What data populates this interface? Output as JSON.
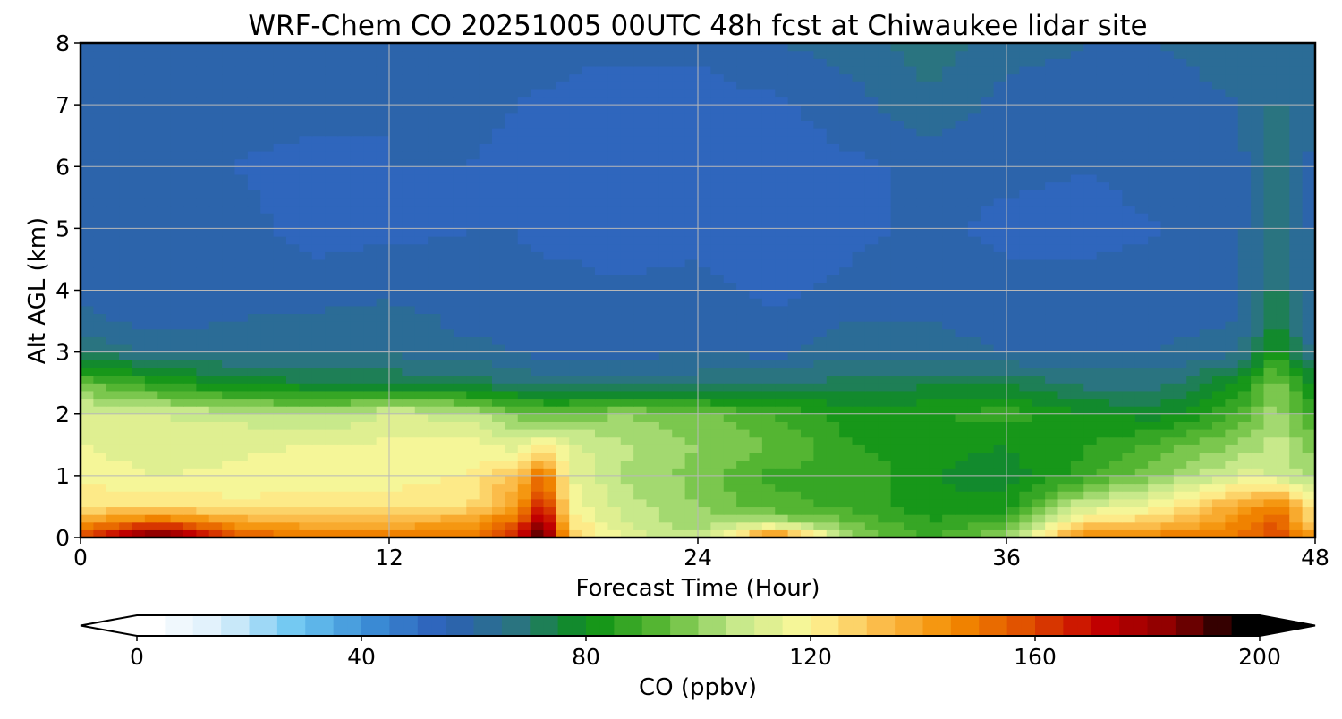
{
  "chart_data": {
    "type": "heatmap",
    "title": "WRF-Chem CO  20251005 00UTC 48h fcst at Chiwaukee lidar site",
    "xlabel": "Forecast Time (Hour)",
    "ylabel": "Alt AGL (km)",
    "xlim": [
      0,
      48
    ],
    "ylim": [
      0,
      8
    ],
    "xticks": [
      0,
      12,
      24,
      36,
      48
    ],
    "yticks": [
      0,
      1,
      2,
      3,
      4,
      5,
      6,
      7,
      8
    ],
    "grid": true,
    "x": [
      0,
      3,
      6,
      9,
      12,
      15,
      17,
      18,
      19,
      21,
      24,
      27,
      30,
      33,
      36,
      39,
      42,
      45,
      46.5,
      48
    ],
    "y": [
      0,
      0.25,
      0.5,
      1,
      1.5,
      2,
      2.5,
      3,
      3.5,
      4,
      5,
      6,
      7,
      8
    ],
    "z": [
      [
        160,
        195,
        160,
        150,
        150,
        150,
        170,
        200,
        130,
        115,
        105,
        150,
        100,
        90,
        100,
        150,
        150,
        150,
        160,
        140
      ],
      [
        140,
        155,
        140,
        135,
        135,
        140,
        155,
        185,
        125,
        110,
        102,
        105,
        95,
        85,
        92,
        125,
        130,
        145,
        158,
        125
      ],
      [
        125,
        125,
        122,
        122,
        122,
        125,
        140,
        170,
        120,
        108,
        100,
        92,
        88,
        82,
        82,
        110,
        118,
        138,
        150,
        118
      ],
      [
        118,
        115,
        116,
        118,
        118,
        120,
        132,
        155,
        115,
        105,
        98,
        88,
        90,
        80,
        77,
        88,
        100,
        112,
        110,
        102
      ],
      [
        115,
        112,
        114,
        115,
        116,
        118,
        112,
        120,
        112,
        106,
        100,
        95,
        85,
        82,
        80,
        84,
        92,
        100,
        108,
        97
      ],
      [
        112,
        110,
        108,
        104,
        110,
        108,
        97,
        95,
        96,
        100,
        96,
        90,
        82,
        84,
        88,
        80,
        78,
        90,
        103,
        88
      ],
      [
        95,
        86,
        78,
        76,
        74,
        72,
        70,
        68,
        66,
        68,
        68,
        70,
        72,
        74,
        74,
        68,
        68,
        80,
        100,
        76
      ],
      [
        70,
        64,
        64,
        64,
        64,
        62,
        60,
        58,
        58,
        58,
        60,
        58,
        64,
        62,
        60,
        60,
        60,
        64,
        82,
        64
      ],
      [
        62,
        58,
        60,
        62,
        64,
        58,
        58,
        56,
        56,
        56,
        58,
        56,
        60,
        60,
        58,
        56,
        58,
        60,
        76,
        58
      ],
      [
        58,
        56,
        58,
        56,
        58,
        56,
        56,
        56,
        56,
        56,
        56,
        54,
        56,
        58,
        56,
        56,
        56,
        58,
        72,
        58
      ],
      [
        56,
        56,
        56,
        54,
        54,
        55,
        55,
        54,
        54,
        52,
        54,
        53,
        54,
        56,
        54,
        54,
        55,
        58,
        70,
        58
      ],
      [
        56,
        55,
        55,
        54,
        55,
        55,
        54,
        53,
        53,
        52,
        52,
        52,
        54,
        56,
        56,
        55,
        56,
        58,
        68,
        58
      ],
      [
        58,
        57,
        56,
        56,
        55,
        56,
        55,
        54,
        54,
        53,
        53,
        54,
        58,
        64,
        58,
        58,
        58,
        60,
        66,
        60
      ],
      [
        60,
        60,
        58,
        58,
        58,
        58,
        58,
        58,
        56,
        56,
        56,
        60,
        62,
        68,
        62,
        60,
        60,
        62,
        64,
        62
      ]
    ],
    "colorbar": {
      "label": "CO  (ppbv)",
      "min": 0,
      "max": 200,
      "ticks": [
        0,
        40,
        80,
        120,
        160,
        200
      ],
      "extend": "both",
      "colors": [
        "#ffffff",
        "#d9eefb",
        "#6cc6f1",
        "#3b8ed6",
        "#2d5fb8",
        "#2a7480",
        "#0b9114",
        "#5ab834",
        "#c4e88a",
        "#fef89a",
        "#fbbc4a",
        "#f38c00",
        "#e04e00",
        "#c40000",
        "#8a0000",
        "#000000"
      ]
    }
  }
}
